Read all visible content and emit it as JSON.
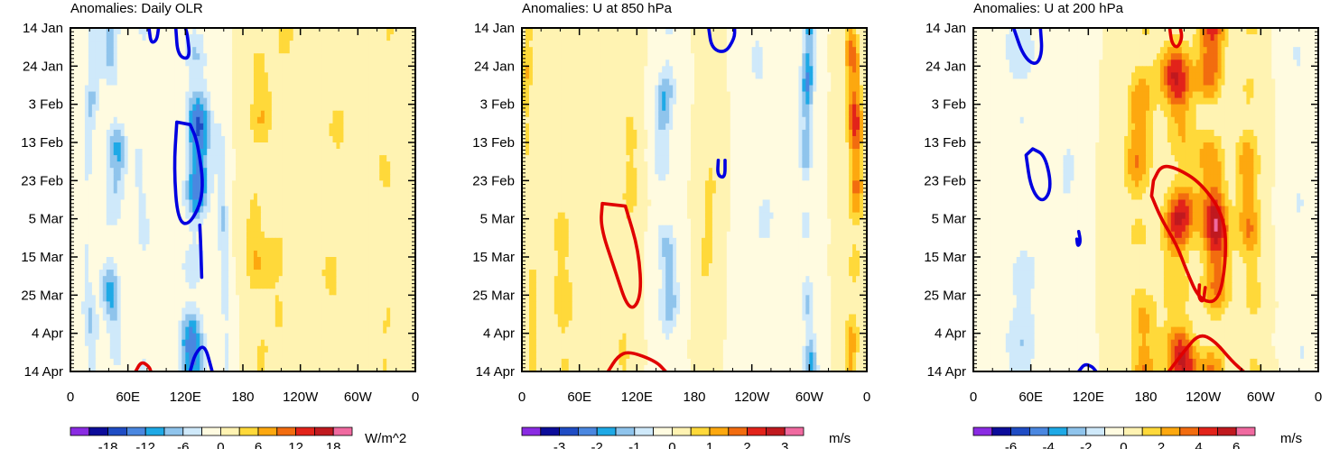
{
  "chart_data": [
    {
      "type": "heatmap",
      "title": "Anomalies: Daily OLR",
      "x_ticks": [
        "0",
        "60E",
        "120E",
        "180",
        "120W",
        "60W",
        "0"
      ],
      "y_ticks": [
        "14 Jan",
        "24 Jan",
        "3 Feb",
        "13 Feb",
        "23 Feb",
        "5 Mar",
        "15 Mar",
        "25 Mar",
        "4 Apr",
        "14 Apr"
      ],
      "colorbar_labels": [
        "-18",
        "-12",
        "-6",
        "0",
        "6",
        "12",
        "18"
      ],
      "colorbar_unit": "W/m^2",
      "colorbar_levels": [
        -21,
        -18,
        -15,
        -12,
        -9,
        -6,
        -3,
        0,
        3,
        6,
        9,
        12,
        15,
        18,
        21
      ],
      "seed": 3,
      "bands": [
        {
          "lon": 20,
          "amp": -5,
          "w": 8
        },
        {
          "lon": 45,
          "amp": -8,
          "w": 10
        },
        {
          "lon": 75,
          "amp": -4,
          "w": 8
        },
        {
          "lon": 130,
          "amp": -13,
          "w": 12
        },
        {
          "lon": 160,
          "amp": -5,
          "w": 6
        },
        {
          "lon": 195,
          "amp": 5,
          "w": 12
        },
        {
          "lon": 220,
          "amp": 3,
          "w": 14
        },
        {
          "lon": 275,
          "amp": 3,
          "w": 14
        },
        {
          "lon": 330,
          "amp": 3,
          "w": 10
        }
      ],
      "contours": [
        {
          "color": "#0000e0",
          "points": [
            [
              82,
              0
            ],
            [
              84,
              12
            ],
            [
              90,
              10
            ],
            [
              92,
              0
            ]
          ]
        },
        {
          "color": "#0000e0",
          "points": [
            [
              110,
              0
            ],
            [
              112,
              22
            ],
            [
              125,
              25
            ],
            [
              122,
              5
            ],
            [
              120,
              0
            ]
          ]
        },
        {
          "color": "#0000e0",
          "points": [
            [
              111,
              74
            ],
            [
              108,
              110
            ],
            [
              112,
              152
            ],
            [
              125,
              155
            ],
            [
              140,
              130
            ],
            [
              133,
              90
            ],
            [
              125,
              76
            ]
          ]
        },
        {
          "color": "#0000e0",
          "points": [
            [
              135,
              155
            ],
            [
              136,
              170
            ],
            [
              137,
              196
            ]
          ]
        },
        {
          "color": "#0000e0",
          "points": [
            [
              125,
              270
            ],
            [
              130,
              256
            ],
            [
              140,
              248
            ],
            [
              148,
              270
            ]
          ]
        },
        {
          "color": "#e00000",
          "points": [
            [
              68,
              270
            ],
            [
              74,
              262
            ],
            [
              82,
              266
            ],
            [
              84,
              270
            ]
          ]
        }
      ]
    },
    {
      "type": "heatmap",
      "title": "Anomalies: U at 850 hPa",
      "x_ticks": [
        "0",
        "60E",
        "120E",
        "180",
        "120W",
        "60W",
        "0"
      ],
      "y_ticks": [
        "14 Jan",
        "24 Jan",
        "3 Feb",
        "13 Feb",
        "23 Feb",
        "5 Mar",
        "15 Mar",
        "25 Mar",
        "4 Apr",
        "14 Apr"
      ],
      "colorbar_labels": [
        "-3",
        "-2",
        "-1",
        "0",
        "1",
        "2",
        "3"
      ],
      "colorbar_unit": "m/s",
      "colorbar_levels": [
        -3.5,
        -3,
        -2.5,
        -2,
        -1.5,
        -1,
        -0.5,
        0,
        0.5,
        1,
        1.5,
        2,
        2.5,
        3,
        3.5
      ],
      "seed": 7,
      "bands": [
        {
          "lon": 8,
          "amp": 0.8,
          "w": 6
        },
        {
          "lon": 45,
          "amp": 0.6,
          "w": 14
        },
        {
          "lon": 110,
          "amp": 0.6,
          "w": 10
        },
        {
          "lon": 150,
          "amp": -1.2,
          "w": 10
        },
        {
          "lon": 195,
          "amp": 0.6,
          "w": 8
        },
        {
          "lon": 250,
          "amp": -0.5,
          "w": 14
        },
        {
          "lon": 300,
          "amp": -1.6,
          "w": 7
        },
        {
          "lon": 345,
          "amp": 1.7,
          "w": 8
        }
      ],
      "contours": [
        {
          "color": "#0000e0",
          "points": [
            [
              195,
              0
            ],
            [
              198,
              16
            ],
            [
              212,
              20
            ],
            [
              222,
              8
            ],
            [
              222,
              0
            ]
          ]
        },
        {
          "color": "#0000e0",
          "points": [
            [
              205,
              104
            ],
            [
              204,
              116
            ],
            [
              212,
              118
            ],
            [
              212,
              104
            ]
          ]
        },
        {
          "color": "#e00000",
          "points": [
            [
              84,
              138
            ],
            [
              82,
              156
            ],
            [
              96,
              188
            ],
            [
              112,
              224
            ],
            [
              125,
              212
            ],
            [
              122,
              175
            ],
            [
              108,
              140
            ]
          ]
        },
        {
          "color": "#e00000",
          "points": [
            [
              90,
              270
            ],
            [
              100,
              258
            ],
            [
              112,
              254
            ],
            [
              140,
              262
            ],
            [
              150,
              270
            ]
          ]
        }
      ]
    },
    {
      "type": "heatmap",
      "title": "Anomalies: U at 200 hPa",
      "x_ticks": [
        "0",
        "60E",
        "120E",
        "180",
        "120W",
        "60W",
        "0"
      ],
      "y_ticks": [
        "14 Jan",
        "24 Jan",
        "3 Feb",
        "13 Feb",
        "23 Feb",
        "5 Mar",
        "15 Mar",
        "25 Mar",
        "4 Apr",
        "14 Apr"
      ],
      "colorbar_labels": [
        "-6",
        "-4",
        "-2",
        "0",
        "2",
        "4",
        "6"
      ],
      "colorbar_unit": "m/s",
      "colorbar_levels": [
        -7,
        -6,
        -5,
        -4,
        -3,
        -2,
        -1,
        0,
        1,
        2,
        3,
        4,
        5,
        6,
        7
      ],
      "seed": 11,
      "bands": [
        {
          "lon": 50,
          "amp": -1.5,
          "w": 18
        },
        {
          "lon": 100,
          "amp": -1,
          "w": 10
        },
        {
          "lon": 175,
          "amp": 2.5,
          "w": 14
        },
        {
          "lon": 215,
          "amp": 4,
          "w": 16
        },
        {
          "lon": 250,
          "amp": 4.5,
          "w": 14
        },
        {
          "lon": 290,
          "amp": 2.5,
          "w": 12
        },
        {
          "lon": 340,
          "amp": -0.8,
          "w": 14
        }
      ],
      "contours": [
        {
          "color": "#0000e0",
          "points": [
            [
              42,
              0
            ],
            [
              52,
              22
            ],
            [
              65,
              30
            ],
            [
              72,
              20
            ],
            [
              70,
              0
            ]
          ]
        },
        {
          "color": "#0000e0",
          "points": [
            [
              55,
              100
            ],
            [
              60,
              126
            ],
            [
              72,
              138
            ],
            [
              82,
              126
            ],
            [
              75,
              100
            ],
            [
              62,
              95
            ]
          ]
        },
        {
          "color": "#0000e0",
          "points": [
            [
              108,
              166
            ],
            [
              109,
              172
            ],
            [
              112,
              168
            ],
            [
              110,
              160
            ]
          ]
        },
        {
          "color": "#0000e0",
          "points": [
            [
              110,
              270
            ],
            [
              116,
              264
            ],
            [
              124,
              266
            ],
            [
              128,
              270
            ]
          ]
        },
        {
          "color": "#e00000",
          "points": [
            [
              205,
              0
            ],
            [
              207,
              12
            ],
            [
              213,
              16
            ],
            [
              218,
              8
            ],
            [
              216,
              0
            ]
          ]
        },
        {
          "color": "#e00000",
          "points": [
            [
              188,
              120
            ],
            [
              196,
              108
            ],
            [
              212,
              110
            ],
            [
              238,
              122
            ],
            [
              262,
              148
            ],
            [
              264,
              182
            ],
            [
              256,
              216
            ],
            [
              236,
              214
            ],
            [
              222,
              190
            ],
            [
              212,
              170
            ],
            [
              196,
              150
            ],
            [
              186,
              132
            ]
          ]
        },
        {
          "color": "#e00000",
          "points": [
            [
              236,
              202
            ],
            [
              235,
              212
            ],
            [
              240,
              216
            ],
            [
              242,
              204
            ]
          ]
        },
        {
          "color": "#e00000",
          "points": [
            [
              204,
              270
            ],
            [
              220,
              254
            ],
            [
              236,
              240
            ],
            [
              252,
              246
            ],
            [
              270,
              262
            ],
            [
              282,
              270
            ]
          ]
        }
      ]
    }
  ],
  "colors": {
    "colormap": [
      "#8a2be2",
      "#0c0c9a",
      "#1f4cc4",
      "#4a87e0",
      "#1ea9e6",
      "#8fc4ec",
      "#cfe9fa",
      "#fffbe0",
      "#fff3b2",
      "#ffd93a",
      "#fda80f",
      "#f26c0f",
      "#e2231a",
      "#c0191f",
      "#f06aa0"
    ]
  }
}
